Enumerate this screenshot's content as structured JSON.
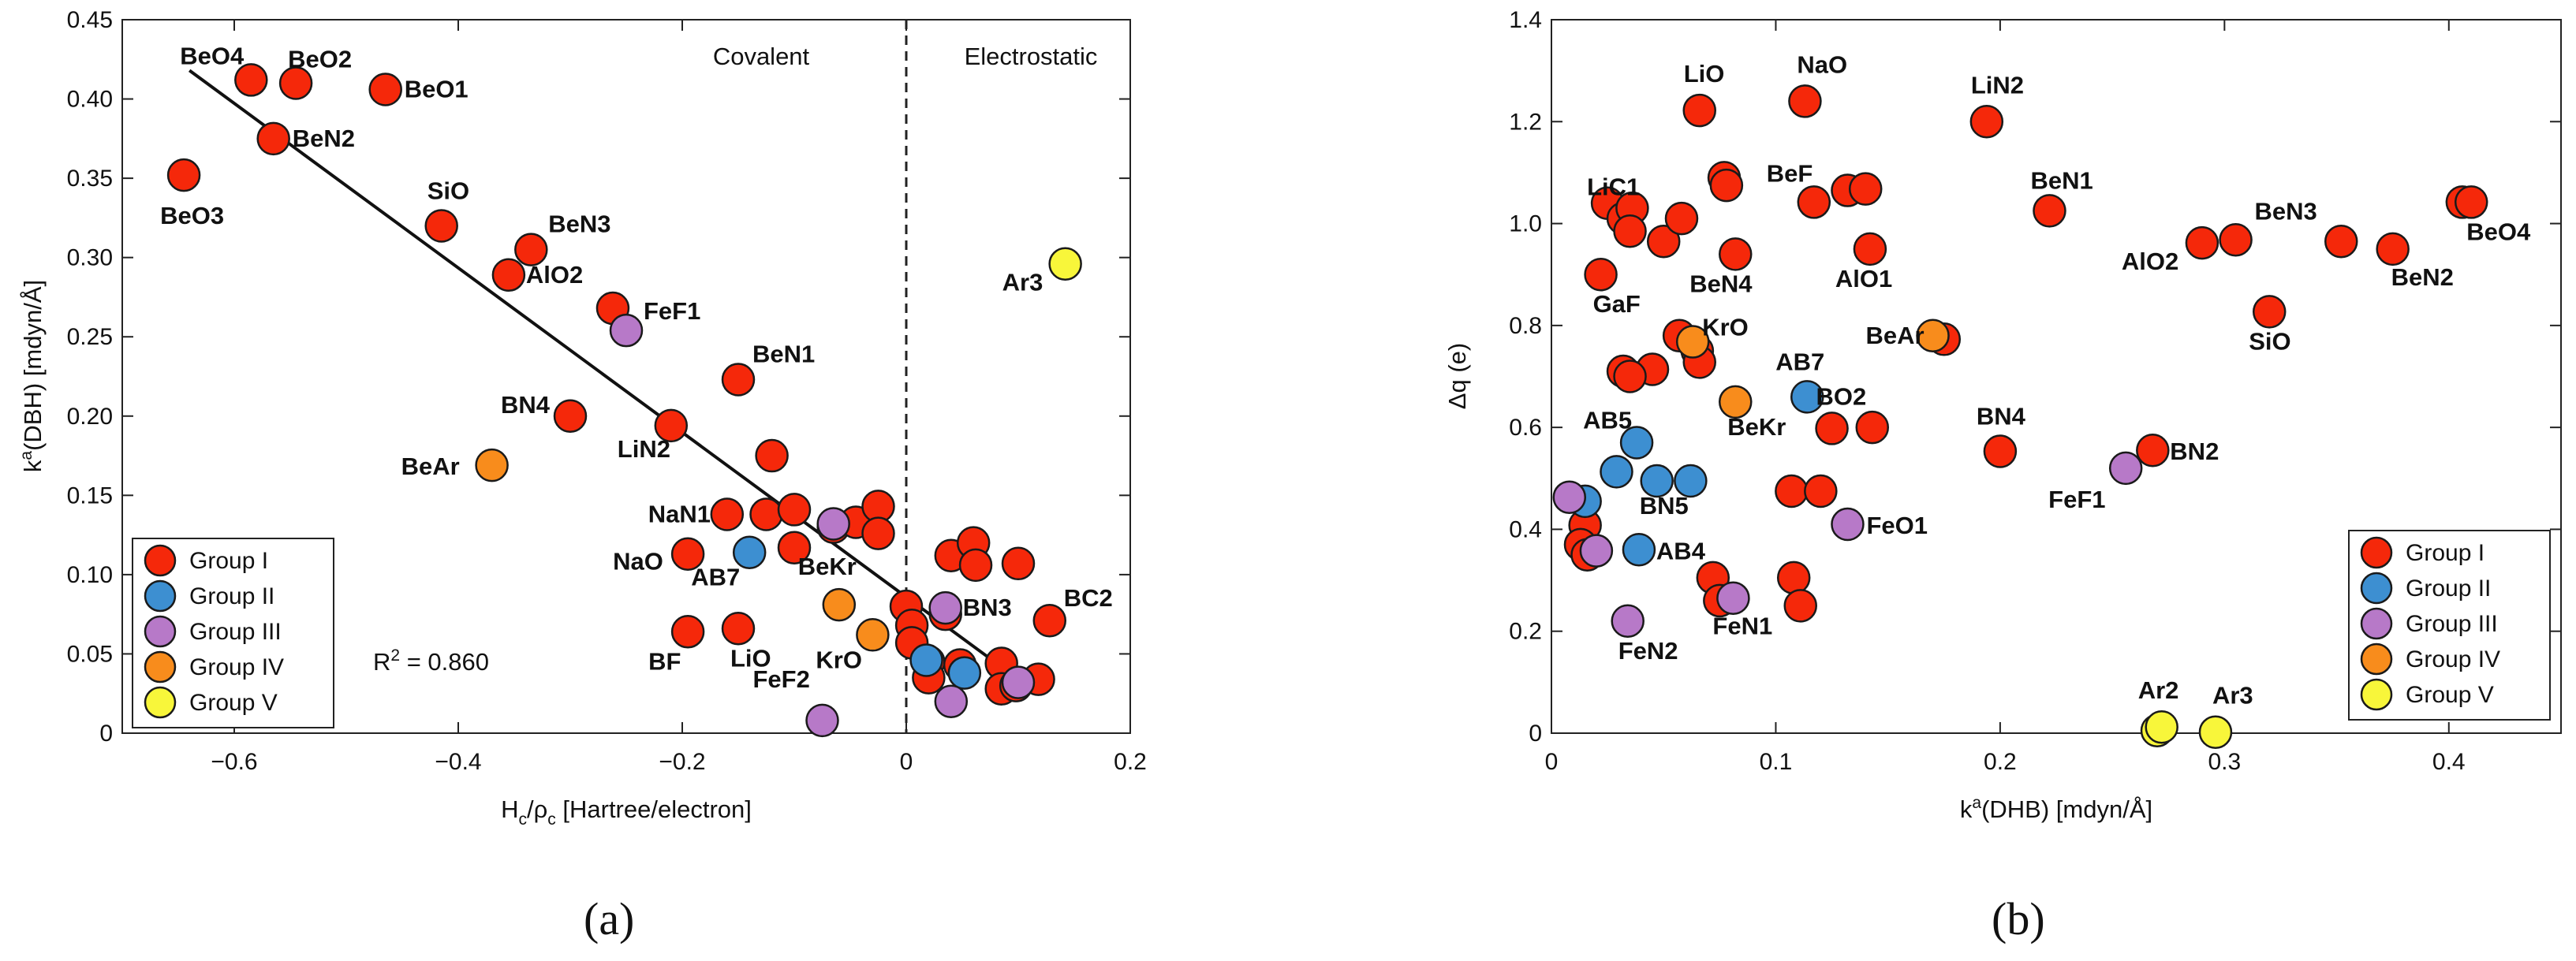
{
  "group_colors": {
    "Group I": "#f5280a",
    "Group II": "#3d8fd1",
    "Group III": "#b779c8",
    "Group IV": "#f88c1c",
    "Group V": "#f8f63a"
  },
  "chart_data": [
    {
      "panel": "(a)",
      "type": "scatter",
      "xlabel_main": "H",
      "xlabel_sub1": "c",
      "xlabel_mid": "/ρ",
      "xlabel_sub2": "c",
      "xlabel_tail": " [Hartree/electron]",
      "ylabel_main": "k",
      "ylabel_sup": "a",
      "ylabel_tail": "(DBH) [mdyn/Å]",
      "xlim": [
        -0.7,
        0.2
      ],
      "ylim": [
        0,
        0.45
      ],
      "xticks": [
        -0.6,
        -0.4,
        -0.2,
        0,
        0.2
      ],
      "xtick_labels": [
        "−0.6",
        "−0.4",
        "−0.2",
        "0",
        "0.2"
      ],
      "yticks": [
        0,
        0.05,
        0.1,
        0.15,
        0.2,
        0.25,
        0.3,
        0.35,
        0.4,
        0.45
      ],
      "ytick_labels": [
        "0",
        "0.05",
        "0.10",
        "0.15",
        "0.20",
        "0.25",
        "0.30",
        "0.35",
        "0.40",
        "0.45"
      ],
      "divider_x": 0,
      "region_labels": [
        "Covalent",
        "Electrostatic"
      ],
      "fit_line": {
        "x": [
          -0.64,
          0.1
        ],
        "y": [
          0.418,
          0.034
        ]
      },
      "r2_prefix": "R",
      "r2_sup": "2",
      "r2_value": " = 0.860",
      "legend": [
        "Group I",
        "Group II",
        "Group III",
        "Group IV",
        "Group V"
      ],
      "points": [
        {
          "x": -0.645,
          "y": 0.352,
          "group": "Group I",
          "label": "BeO3"
        },
        {
          "x": -0.585,
          "y": 0.412,
          "group": "Group I",
          "label": "BeO4"
        },
        {
          "x": -0.545,
          "y": 0.41,
          "group": "Group I",
          "label": "BeO2"
        },
        {
          "x": -0.565,
          "y": 0.375,
          "group": "Group I",
          "label": "BeN2"
        },
        {
          "x": -0.465,
          "y": 0.406,
          "group": "Group I",
          "label": "BeO1"
        },
        {
          "x": -0.415,
          "y": 0.32,
          "group": "Group I",
          "label": "SiO"
        },
        {
          "x": -0.335,
          "y": 0.305,
          "group": "Group I",
          "label": "BeN3"
        },
        {
          "x": -0.355,
          "y": 0.289,
          "group": "Group I",
          "label": "AlO2"
        },
        {
          "x": -0.262,
          "y": 0.268,
          "group": "Group I",
          "label": ""
        },
        {
          "x": -0.25,
          "y": 0.254,
          "group": "Group III",
          "label": "FeF1"
        },
        {
          "x": -0.15,
          "y": 0.223,
          "group": "Group I",
          "label": "BeN1"
        },
        {
          "x": -0.3,
          "y": 0.2,
          "group": "Group I",
          "label": "BN4"
        },
        {
          "x": -0.21,
          "y": 0.194,
          "group": "Group I",
          "label": "LiN2"
        },
        {
          "x": -0.37,
          "y": 0.169,
          "group": "Group IV",
          "label": "BeAr"
        },
        {
          "x": -0.12,
          "y": 0.175,
          "group": "Group I",
          "label": ""
        },
        {
          "x": -0.16,
          "y": 0.138,
          "group": "Group I",
          "label": "NaN1"
        },
        {
          "x": -0.125,
          "y": 0.138,
          "group": "Group I",
          "label": ""
        },
        {
          "x": -0.1,
          "y": 0.141,
          "group": "Group I",
          "label": ""
        },
        {
          "x": -0.1,
          "y": 0.117,
          "group": "Group I",
          "label": ""
        },
        {
          "x": -0.065,
          "y": 0.13,
          "group": "Group I",
          "label": ""
        },
        {
          "x": -0.045,
          "y": 0.133,
          "group": "Group I",
          "label": ""
        },
        {
          "x": -0.025,
          "y": 0.143,
          "group": "Group I",
          "label": ""
        },
        {
          "x": -0.025,
          "y": 0.126,
          "group": "Group I",
          "label": ""
        },
        {
          "x": -0.065,
          "y": 0.132,
          "group": "Group III",
          "label": ""
        },
        {
          "x": -0.14,
          "y": 0.114,
          "group": "Group II",
          "label": "AB7"
        },
        {
          "x": -0.195,
          "y": 0.113,
          "group": "Group I",
          "label": "NaO"
        },
        {
          "x": -0.195,
          "y": 0.064,
          "group": "Group I",
          "label": "BF"
        },
        {
          "x": -0.15,
          "y": 0.066,
          "group": "Group I",
          "label": "LiO"
        },
        {
          "x": -0.06,
          "y": 0.081,
          "group": "Group IV",
          "label": "BeKr"
        },
        {
          "x": -0.03,
          "y": 0.062,
          "group": "Group IV",
          "label": "KrO"
        },
        {
          "x": -0.075,
          "y": 0.008,
          "group": "Group III",
          "label": "FeF2"
        },
        {
          "x": 0.0,
          "y": 0.08,
          "group": "Group I",
          "label": ""
        },
        {
          "x": 0.005,
          "y": 0.068,
          "group": "Group I",
          "label": ""
        },
        {
          "x": 0.005,
          "y": 0.057,
          "group": "Group I",
          "label": ""
        },
        {
          "x": 0.02,
          "y": 0.045,
          "group": "Group I",
          "label": ""
        },
        {
          "x": 0.02,
          "y": 0.035,
          "group": "Group I",
          "label": ""
        },
        {
          "x": 0.035,
          "y": 0.075,
          "group": "Group I",
          "label": ""
        },
        {
          "x": 0.04,
          "y": 0.112,
          "group": "Group I",
          "label": ""
        },
        {
          "x": 0.06,
          "y": 0.12,
          "group": "Group I",
          "label": ""
        },
        {
          "x": 0.062,
          "y": 0.106,
          "group": "Group I",
          "label": ""
        },
        {
          "x": 0.048,
          "y": 0.043,
          "group": "Group I",
          "label": ""
        },
        {
          "x": 0.085,
          "y": 0.044,
          "group": "Group I",
          "label": ""
        },
        {
          "x": 0.1,
          "y": 0.107,
          "group": "Group I",
          "label": ""
        },
        {
          "x": 0.085,
          "y": 0.028,
          "group": "Group I",
          "label": ""
        },
        {
          "x": 0.098,
          "y": 0.03,
          "group": "Group I",
          "label": ""
        },
        {
          "x": 0.118,
          "y": 0.034,
          "group": "Group I",
          "label": ""
        },
        {
          "x": 0.128,
          "y": 0.071,
          "group": "Group I",
          "label": "BC2"
        },
        {
          "x": 0.018,
          "y": 0.046,
          "group": "Group II",
          "label": ""
        },
        {
          "x": 0.052,
          "y": 0.038,
          "group": "Group II",
          "label": ""
        },
        {
          "x": 0.035,
          "y": 0.079,
          "group": "Group III",
          "label": "BN3"
        },
        {
          "x": 0.04,
          "y": 0.02,
          "group": "Group III",
          "label": ""
        },
        {
          "x": 0.1,
          "y": 0.032,
          "group": "Group III",
          "label": ""
        },
        {
          "x": 0.142,
          "y": 0.296,
          "group": "Group V",
          "label": "Ar3"
        }
      ]
    },
    {
      "panel": "(b)",
      "type": "scatter",
      "xlabel_main": "k",
      "xlabel_sup": "a",
      "xlabel_tail": "(DHB) [mdyn/Å]",
      "ylabel": "Δq (e)",
      "xlim": [
        0,
        0.45
      ],
      "ylim": [
        0,
        1.4
      ],
      "xticks": [
        0,
        0.1,
        0.2,
        0.3,
        0.4
      ],
      "xtick_labels": [
        "0",
        "0.1",
        "0.2",
        "0.3",
        "0.4"
      ],
      "yticks": [
        0,
        0.2,
        0.4,
        0.6,
        0.8,
        1.0,
        1.2,
        1.4
      ],
      "ytick_labels": [
        "0",
        "0.2",
        "0.4",
        "0.6",
        "0.8",
        "1.0",
        "1.2",
        "1.4"
      ],
      "legend": [
        "Group I",
        "Group II",
        "Group III",
        "Group IV",
        "Group V"
      ],
      "points": [
        {
          "x": 0.066,
          "y": 1.222,
          "group": "Group I",
          "label": "LiO"
        },
        {
          "x": 0.113,
          "y": 1.24,
          "group": "Group I",
          "label": "NaO"
        },
        {
          "x": 0.194,
          "y": 1.2,
          "group": "Group I",
          "label": "LiN2"
        },
        {
          "x": 0.025,
          "y": 1.04,
          "group": "Group I",
          "label": "LiC1"
        },
        {
          "x": 0.032,
          "y": 1.01,
          "group": "Group I",
          "label": ""
        },
        {
          "x": 0.036,
          "y": 1.03,
          "group": "Group I",
          "label": ""
        },
        {
          "x": 0.035,
          "y": 0.985,
          "group": "Group I",
          "label": ""
        },
        {
          "x": 0.05,
          "y": 0.965,
          "group": "Group I",
          "label": ""
        },
        {
          "x": 0.058,
          "y": 1.01,
          "group": "Group I",
          "label": ""
        },
        {
          "x": 0.077,
          "y": 1.09,
          "group": "Group I",
          "label": ""
        },
        {
          "x": 0.078,
          "y": 1.075,
          "group": "Group I",
          "label": ""
        },
        {
          "x": 0.117,
          "y": 1.042,
          "group": "Group I",
          "label": "BeF"
        },
        {
          "x": 0.132,
          "y": 1.065,
          "group": "Group I",
          "label": ""
        },
        {
          "x": 0.14,
          "y": 1.068,
          "group": "Group I",
          "label": ""
        },
        {
          "x": 0.082,
          "y": 0.94,
          "group": "Group I",
          "label": "BeN4"
        },
        {
          "x": 0.142,
          "y": 0.95,
          "group": "Group I",
          "label": "AlO1"
        },
        {
          "x": 0.022,
          "y": 0.9,
          "group": "Group I",
          "label": "GaF"
        },
        {
          "x": 0.222,
          "y": 1.025,
          "group": "Group I",
          "label": "BeN1"
        },
        {
          "x": 0.29,
          "y": 0.962,
          "group": "Group I",
          "label": "AlO2"
        },
        {
          "x": 0.305,
          "y": 0.968,
          "group": "Group I",
          "label": "BeN3"
        },
        {
          "x": 0.352,
          "y": 0.965,
          "group": "Group I",
          "label": ""
        },
        {
          "x": 0.375,
          "y": 0.95,
          "group": "Group I",
          "label": "BeN2"
        },
        {
          "x": 0.406,
          "y": 1.042,
          "group": "Group I",
          "label": ""
        },
        {
          "x": 0.41,
          "y": 1.042,
          "group": "Group I",
          "label": "BeO4"
        },
        {
          "x": 0.32,
          "y": 0.827,
          "group": "Group I",
          "label": "SiO"
        },
        {
          "x": 0.057,
          "y": 0.78,
          "group": "Group I",
          "label": ""
        },
        {
          "x": 0.065,
          "y": 0.75,
          "group": "Group I",
          "label": ""
        },
        {
          "x": 0.066,
          "y": 0.728,
          "group": "Group I",
          "label": ""
        },
        {
          "x": 0.045,
          "y": 0.714,
          "group": "Group I",
          "label": ""
        },
        {
          "x": 0.032,
          "y": 0.71,
          "group": "Group I",
          "label": ""
        },
        {
          "x": 0.035,
          "y": 0.7,
          "group": "Group I",
          "label": ""
        },
        {
          "x": 0.175,
          "y": 0.773,
          "group": "Group I",
          "label": ""
        },
        {
          "x": 0.125,
          "y": 0.598,
          "group": "Group I",
          "label": "BO2"
        },
        {
          "x": 0.143,
          "y": 0.6,
          "group": "Group I",
          "label": ""
        },
        {
          "x": 0.2,
          "y": 0.553,
          "group": "Group I",
          "label": "BN4"
        },
        {
          "x": 0.268,
          "y": 0.555,
          "group": "Group I",
          "label": "BN2"
        },
        {
          "x": 0.107,
          "y": 0.475,
          "group": "Group I",
          "label": ""
        },
        {
          "x": 0.12,
          "y": 0.475,
          "group": "Group I",
          "label": ""
        },
        {
          "x": 0.015,
          "y": 0.408,
          "group": "Group I",
          "label": ""
        },
        {
          "x": 0.013,
          "y": 0.37,
          "group": "Group I",
          "label": ""
        },
        {
          "x": 0.016,
          "y": 0.35,
          "group": "Group I",
          "label": ""
        },
        {
          "x": 0.072,
          "y": 0.305,
          "group": "Group I",
          "label": ""
        },
        {
          "x": 0.108,
          "y": 0.305,
          "group": "Group I",
          "label": ""
        },
        {
          "x": 0.075,
          "y": 0.26,
          "group": "Group I",
          "label": ""
        },
        {
          "x": 0.111,
          "y": 0.25,
          "group": "Group I",
          "label": ""
        },
        {
          "x": 0.114,
          "y": 0.66,
          "group": "Group II",
          "label": "AB7"
        },
        {
          "x": 0.038,
          "y": 0.57,
          "group": "Group II",
          "label": "AB5"
        },
        {
          "x": 0.029,
          "y": 0.513,
          "group": "Group II",
          "label": ""
        },
        {
          "x": 0.047,
          "y": 0.495,
          "group": "Group II",
          "label": "BN5"
        },
        {
          "x": 0.062,
          "y": 0.495,
          "group": "Group II",
          "label": ""
        },
        {
          "x": 0.015,
          "y": 0.455,
          "group": "Group II",
          "label": ""
        },
        {
          "x": 0.039,
          "y": 0.36,
          "group": "Group II",
          "label": "AB4"
        },
        {
          "x": 0.256,
          "y": 0.52,
          "group": "Group III",
          "label": "FeF1"
        },
        {
          "x": 0.132,
          "y": 0.41,
          "group": "Group III",
          "label": "FeO1"
        },
        {
          "x": 0.008,
          "y": 0.463,
          "group": "Group III",
          "label": ""
        },
        {
          "x": 0.02,
          "y": 0.358,
          "group": "Group III",
          "label": ""
        },
        {
          "x": 0.034,
          "y": 0.22,
          "group": "Group III",
          "label": "FeN2"
        },
        {
          "x": 0.081,
          "y": 0.265,
          "group": "Group III",
          "label": "FeN1"
        },
        {
          "x": 0.063,
          "y": 0.768,
          "group": "Group IV",
          "label": "KrO"
        },
        {
          "x": 0.17,
          "y": 0.78,
          "group": "Group IV",
          "label": "BeAr"
        },
        {
          "x": 0.082,
          "y": 0.65,
          "group": "Group IV",
          "label": "BeKr"
        },
        {
          "x": 0.27,
          "y": 0.005,
          "group": "Group V",
          "label": ""
        },
        {
          "x": 0.272,
          "y": 0.012,
          "group": "Group V",
          "label": "Ar2"
        },
        {
          "x": 0.296,
          "y": 0.002,
          "group": "Group V",
          "label": "Ar3"
        }
      ]
    }
  ]
}
